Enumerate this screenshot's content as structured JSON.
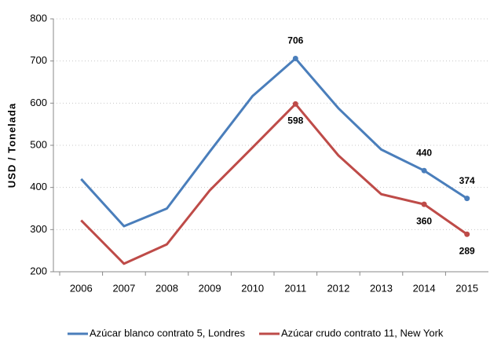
{
  "chart_data": {
    "type": "line",
    "y_label": "USD / Tonelada",
    "categories": [
      "2006",
      "2007",
      "2008",
      "2009",
      "2010",
      "2011",
      "2012",
      "2013",
      "2014",
      "2015"
    ],
    "series": [
      {
        "name": "Azúcar blanco contrato 5, Londres",
        "color": "#4a7ebb",
        "values": [
          420,
          308,
          350,
          485,
          617,
          706,
          588,
          490,
          440,
          374
        ],
        "labeled_points": [
          5,
          8,
          9
        ],
        "label_position": "above"
      },
      {
        "name": "Azúcar crudo contrato 11, New York",
        "color": "#be4b48",
        "values": [
          322,
          219,
          265,
          393,
          495,
          598,
          476,
          384,
          360,
          289
        ],
        "labeled_points": [
          5,
          8,
          9
        ],
        "label_position": "below"
      }
    ],
    "ylim": [
      200,
      800
    ],
    "yticks": [
      200,
      300,
      400,
      500,
      600,
      700,
      800
    ],
    "grid": true
  }
}
